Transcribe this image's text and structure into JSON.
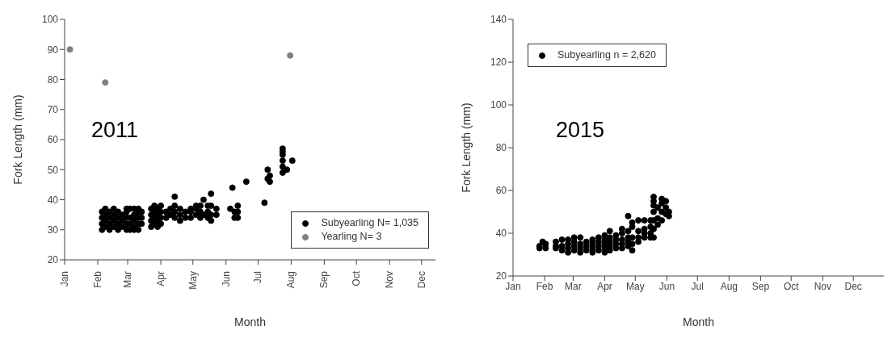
{
  "chart_data": [
    {
      "type": "scatter",
      "xlabel": "Month",
      "ylabel": "Fork Length (mm)",
      "annotations": [
        "2011"
      ],
      "legend": "bottom right",
      "grid": false,
      "marker": "circle",
      "xlim": [
        "2011-01-01",
        "2011-12-14"
      ],
      "ylim": [
        20,
        100
      ],
      "yticks": [
        20,
        30,
        40,
        50,
        60,
        70,
        80,
        90,
        100
      ],
      "xticks": [
        {
          "value": "2011-01-01",
          "label": "Jan"
        },
        {
          "value": "2011-02-01",
          "label": "Feb"
        },
        {
          "value": "2011-03-01",
          "label": "Mar"
        },
        {
          "value": "2011-04-01",
          "label": "Apr"
        },
        {
          "value": "2011-05-01",
          "label": "May"
        },
        {
          "value": "2011-06-01",
          "label": "Jun"
        },
        {
          "value": "2011-07-01",
          "label": "Jul"
        },
        {
          "value": "2011-08-01",
          "label": "Aug"
        },
        {
          "value": "2011-09-01",
          "label": "Sep"
        },
        {
          "value": "2011-10-01",
          "label": "Oct"
        },
        {
          "value": "2011-11-01",
          "label": "Nov"
        },
        {
          "value": "2011-12-01",
          "label": "Dec"
        }
      ],
      "series": [
        {
          "name": "Subyearling N= 1,035",
          "color": "#000000",
          "x": [
            "2011-02-05",
            "2011-02-05",
            "2011-02-05",
            "2011-02-05",
            "2011-02-08",
            "2011-02-08",
            "2011-02-08",
            "2011-02-08",
            "2011-02-12",
            "2011-02-12",
            "2011-02-12",
            "2011-02-12",
            "2011-02-16",
            "2011-02-16",
            "2011-02-16",
            "2011-02-16",
            "2011-02-20",
            "2011-02-20",
            "2011-02-20",
            "2011-02-20",
            "2011-02-24",
            "2011-02-24",
            "2011-02-24",
            "2011-02-28",
            "2011-02-28",
            "2011-02-28",
            "2011-02-28",
            "2011-02-28",
            "2011-03-03",
            "2011-03-03",
            "2011-03-03",
            "2011-03-03",
            "2011-03-07",
            "2011-03-07",
            "2011-03-07",
            "2011-03-07",
            "2011-03-07",
            "2011-03-11",
            "2011-03-11",
            "2011-03-11",
            "2011-03-11",
            "2011-03-11",
            "2011-03-14",
            "2011-03-14",
            "2011-03-14",
            "2011-03-23",
            "2011-03-23",
            "2011-03-23",
            "2011-03-23",
            "2011-03-26",
            "2011-03-26",
            "2011-03-26",
            "2011-03-26",
            "2011-03-29",
            "2011-03-29",
            "2011-03-29",
            "2011-03-29",
            "2011-04-01",
            "2011-04-01",
            "2011-04-01",
            "2011-04-01",
            "2011-04-06",
            "2011-04-06",
            "2011-04-10",
            "2011-04-10",
            "2011-04-14",
            "2011-04-14",
            "2011-04-14",
            "2011-04-14",
            "2011-04-19",
            "2011-04-19",
            "2011-04-19",
            "2011-04-24",
            "2011-04-24",
            "2011-04-29",
            "2011-04-29",
            "2011-04-29",
            "2011-05-04",
            "2011-05-04",
            "2011-05-04",
            "2011-05-08",
            "2011-05-08",
            "2011-05-08",
            "2011-05-11",
            "2011-05-11",
            "2011-05-15",
            "2011-05-15",
            "2011-05-15",
            "2011-05-18",
            "2011-05-18",
            "2011-05-18",
            "2011-05-18",
            "2011-05-23",
            "2011-05-23",
            "2011-06-05",
            "2011-06-07",
            "2011-06-09",
            "2011-06-09",
            "2011-06-12",
            "2011-06-12",
            "2011-06-12",
            "2011-06-20",
            "2011-07-07",
            "2011-07-10",
            "2011-07-10",
            "2011-07-12",
            "2011-07-12",
            "2011-07-24",
            "2011-07-24",
            "2011-07-24",
            "2011-07-24",
            "2011-07-24",
            "2011-07-24",
            "2011-07-28",
            "2011-08-02"
          ],
          "values": [
            30,
            32,
            34,
            36,
            31,
            33,
            35,
            37,
            30,
            32,
            34,
            36,
            31,
            33,
            35,
            37,
            30,
            32,
            34,
            36,
            31,
            33,
            35,
            30,
            32,
            34,
            36,
            37,
            30,
            32,
            34,
            37,
            30,
            31,
            33,
            35,
            37,
            30,
            32,
            34,
            36,
            37,
            32,
            34,
            36,
            31,
            33,
            35,
            37,
            32,
            34,
            36,
            38,
            31,
            33,
            35,
            37,
            32,
            34,
            36,
            38,
            34,
            36,
            35,
            37,
            34,
            36,
            38,
            41,
            33,
            35,
            37,
            34,
            36,
            34,
            36,
            37,
            35,
            37,
            38,
            34,
            36,
            38,
            35,
            40,
            34,
            36,
            38,
            33,
            35,
            38,
            42,
            35,
            37,
            37,
            44,
            34,
            36,
            34,
            36,
            38,
            46,
            39,
            47,
            50,
            46,
            48,
            49,
            51,
            53,
            55,
            56,
            57,
            50,
            53
          ]
        },
        {
          "name": "Yearling N= 3",
          "color": "#808080",
          "x": [
            "2011-01-06",
            "2011-02-08",
            "2011-07-31"
          ],
          "values": [
            90,
            79,
            88
          ]
        }
      ]
    },
    {
      "type": "scatter",
      "xlabel": "Month",
      "ylabel": "Fork Length (mm)",
      "annotations": [
        "2015"
      ],
      "legend": "top left",
      "grid": false,
      "marker": "circle",
      "xlim": [
        "2015-01-01",
        "2015-12-31"
      ],
      "ylim": [
        20,
        140
      ],
      "yticks": [
        20,
        40,
        60,
        80,
        100,
        120,
        140
      ],
      "xticks": [
        {
          "value": "2015-01-01",
          "label": "Jan"
        },
        {
          "value": "2015-02-01",
          "label": "Feb"
        },
        {
          "value": "2015-03-01",
          "label": "Mar"
        },
        {
          "value": "2015-04-01",
          "label": "Apr"
        },
        {
          "value": "2015-05-01",
          "label": "May"
        },
        {
          "value": "2015-06-01",
          "label": "Jun"
        },
        {
          "value": "2015-07-01",
          "label": "Jul"
        },
        {
          "value": "2015-08-01",
          "label": "Aug"
        },
        {
          "value": "2015-09-01",
          "label": "Sep"
        },
        {
          "value": "2015-10-01",
          "label": "Oct"
        },
        {
          "value": "2015-11-01",
          "label": "Nov"
        },
        {
          "value": "2015-12-01",
          "label": "Dec"
        }
      ],
      "series": [
        {
          "name": "Subyearling n = 2,620",
          "color": "#000000",
          "x": [
            "2015-01-27",
            "2015-01-27",
            "2015-01-30",
            "2015-02-02",
            "2015-02-02",
            "2015-02-12",
            "2015-02-12",
            "2015-02-12",
            "2015-02-18",
            "2015-02-18",
            "2015-02-18",
            "2015-02-24",
            "2015-02-24",
            "2015-02-24",
            "2015-02-24",
            "2015-03-02",
            "2015-03-02",
            "2015-03-02",
            "2015-03-02",
            "2015-03-08",
            "2015-03-08",
            "2015-03-08",
            "2015-03-08",
            "2015-03-14",
            "2015-03-14",
            "2015-03-14",
            "2015-03-20",
            "2015-03-20",
            "2015-03-20",
            "2015-03-20",
            "2015-03-26",
            "2015-03-26",
            "2015-03-26",
            "2015-03-26",
            "2015-04-01",
            "2015-04-01",
            "2015-04-01",
            "2015-04-01",
            "2015-04-01",
            "2015-04-06",
            "2015-04-06",
            "2015-04-06",
            "2015-04-06",
            "2015-04-06",
            "2015-04-12",
            "2015-04-12",
            "2015-04-12",
            "2015-04-12",
            "2015-04-18",
            "2015-04-18",
            "2015-04-18",
            "2015-04-18",
            "2015-04-18",
            "2015-04-24",
            "2015-04-24",
            "2015-04-24",
            "2015-04-24",
            "2015-04-24",
            "2015-04-28",
            "2015-04-28",
            "2015-04-28",
            "2015-04-28",
            "2015-04-28",
            "2015-05-04",
            "2015-05-04",
            "2015-05-04",
            "2015-05-04",
            "2015-05-10",
            "2015-05-10",
            "2015-05-10",
            "2015-05-10",
            "2015-05-16",
            "2015-05-16",
            "2015-05-16",
            "2015-05-16",
            "2015-05-19",
            "2015-05-19",
            "2015-05-19",
            "2015-05-19",
            "2015-05-19",
            "2015-05-19",
            "2015-05-19",
            "2015-05-23",
            "2015-05-23",
            "2015-05-23",
            "2015-05-27",
            "2015-05-27",
            "2015-05-27",
            "2015-05-27",
            "2015-05-31",
            "2015-05-31",
            "2015-05-31",
            "2015-06-03",
            "2015-06-03"
          ],
          "values": [
            33,
            34,
            36,
            33,
            35,
            33,
            34,
            36,
            32,
            34,
            37,
            31,
            33,
            35,
            37,
            32,
            34,
            36,
            38,
            31,
            33,
            35,
            38,
            32,
            34,
            36,
            31,
            33,
            35,
            37,
            32,
            34,
            36,
            38,
            31,
            33,
            35,
            37,
            39,
            32,
            34,
            36,
            38,
            41,
            33,
            35,
            37,
            39,
            33,
            35,
            37,
            40,
            42,
            34,
            36,
            38,
            41,
            48,
            32,
            35,
            38,
            43,
            45,
            36,
            38,
            41,
            46,
            38,
            40,
            42,
            46,
            38,
            40,
            43,
            46,
            38,
            42,
            46,
            50,
            53,
            55,
            57,
            44,
            47,
            52,
            46,
            50,
            54,
            56,
            49,
            52,
            55,
            48,
            50
          ]
        }
      ]
    }
  ]
}
